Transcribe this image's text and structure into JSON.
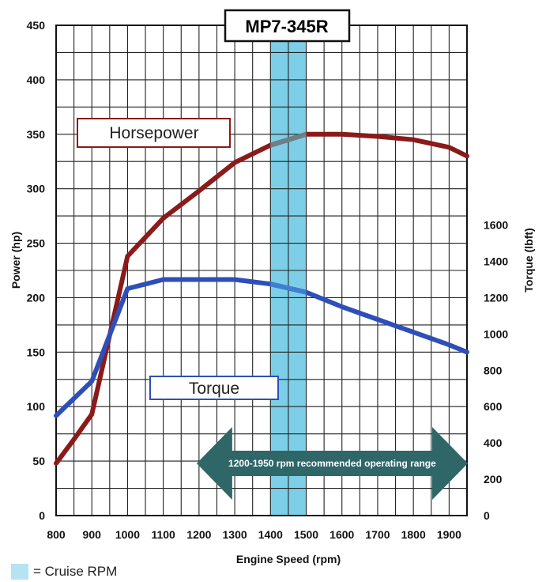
{
  "chart_data": {
    "type": "line",
    "title": "MP7-345R",
    "xlabel": "Engine Speed (rpm)",
    "ylabel": "Power (hp)",
    "y2label": "Torque (lbft)",
    "x_ticks": [
      800,
      900,
      1000,
      1100,
      1200,
      1300,
      1400,
      1500,
      1600,
      1700,
      1800,
      1900
    ],
    "y_ticks": [
      0,
      50,
      100,
      150,
      200,
      250,
      300,
      350,
      400,
      450
    ],
    "y2_ticks": [
      0,
      200,
      400,
      600,
      800,
      1000,
      1200,
      1400,
      1600
    ],
    "xlim": [
      800,
      1950
    ],
    "ylim": [
      0,
      450
    ],
    "y2lim": [
      0,
      2700
    ],
    "grid": true,
    "series": [
      {
        "name": "Horsepower",
        "axis": "left",
        "color": "#8b1a1a",
        "points": [
          [
            800,
            48
          ],
          [
            850,
            70
          ],
          [
            900,
            93
          ],
          [
            1000,
            238
          ],
          [
            1100,
            273
          ],
          [
            1200,
            298
          ],
          [
            1300,
            324
          ],
          [
            1400,
            340
          ],
          [
            1500,
            350
          ],
          [
            1600,
            350
          ],
          [
            1700,
            348
          ],
          [
            1800,
            345
          ],
          [
            1900,
            338
          ],
          [
            1950,
            330
          ]
        ]
      },
      {
        "name": "Torque",
        "axis": "right",
        "color": "#2e4fb8",
        "points": [
          [
            800,
            550
          ],
          [
            900,
            740
          ],
          [
            1000,
            1250
          ],
          [
            1100,
            1300
          ],
          [
            1200,
            1300
          ],
          [
            1300,
            1300
          ],
          [
            1400,
            1275
          ],
          [
            1500,
            1230
          ],
          [
            1600,
            1150
          ],
          [
            1700,
            1080
          ],
          [
            1800,
            1010
          ],
          [
            1900,
            940
          ],
          [
            1950,
            900
          ]
        ]
      }
    ],
    "cruise_band": {
      "from": 1400,
      "to": 1500,
      "color": "#7dcfe7"
    },
    "operating_range": {
      "from": 1200,
      "to": 1950,
      "label": "1200-1950 rpm recommended operating range",
      "color": "#2f6668"
    },
    "legend_cruise": "= Cruise RPM"
  }
}
